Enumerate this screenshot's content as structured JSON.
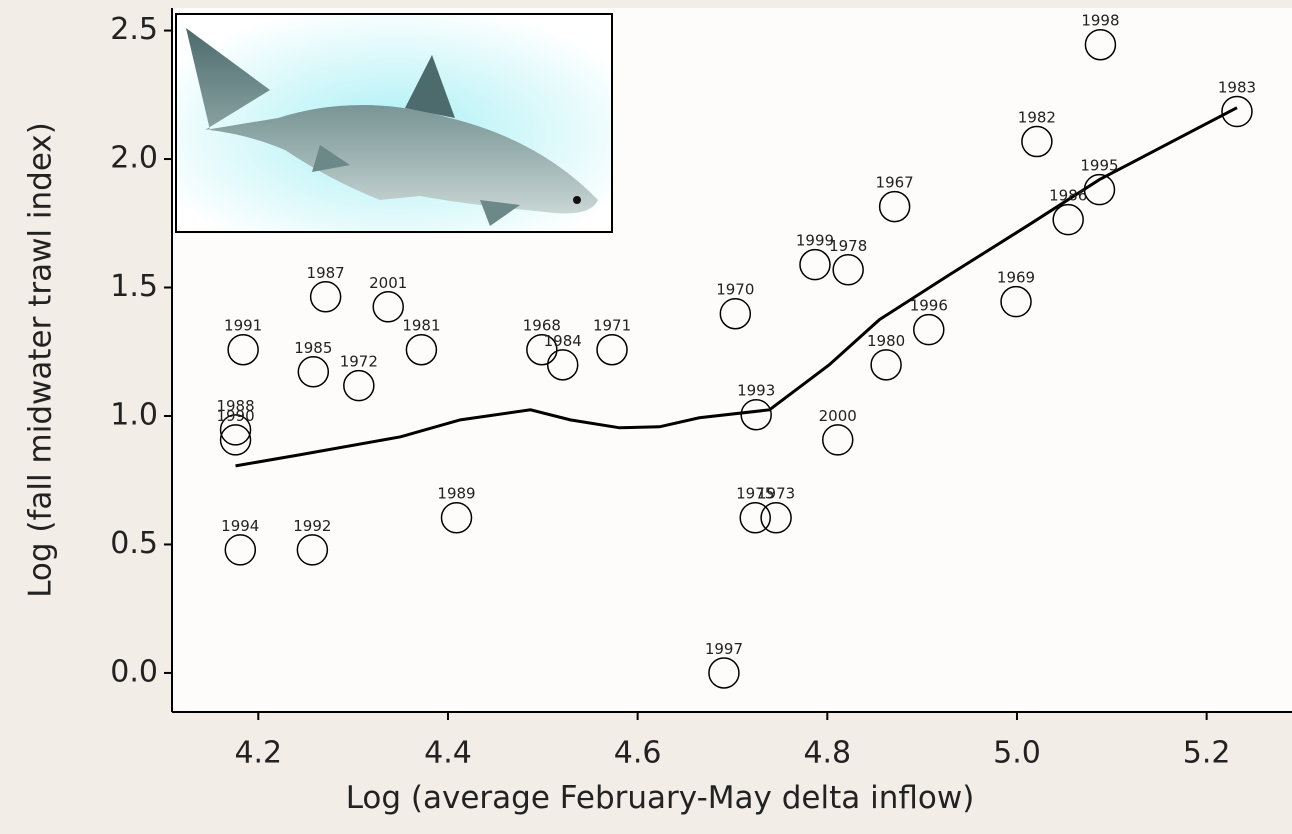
{
  "chart_data": {
    "type": "scatter",
    "x_label": "Log (average February-May delta inflow)",
    "y_label": "Log (fall midwater trawl index)",
    "xlim": [
      4.109,
      5.29
    ],
    "ylim": [
      -0.152,
      2.58
    ],
    "xticks": [
      4.2,
      4.4,
      4.6,
      4.8,
      {
        "value": 5,
        "label": "5.0"
      },
      5.2
    ],
    "yticks": [
      {
        "value": 0,
        "label": "0.0"
      },
      0.5,
      {
        "value": 1,
        "label": "1.0"
      },
      1.5,
      {
        "value": 2,
        "label": "2.0"
      },
      2.5
    ],
    "color": "#000000",
    "point_labels": [
      "1998",
      "1983",
      "1982",
      "1995",
      "1967",
      "1986",
      "1999",
      "1978",
      "1969",
      "1996",
      "1980",
      "1970",
      "1993",
      "2000",
      "1975",
      "1973",
      "1997",
      "1968",
      "1984",
      "1971",
      "1981",
      "2001",
      "1987",
      "1985",
      "1972",
      "1991",
      "1988",
      "1990",
      "1989",
      "1994",
      "1992"
    ],
    "x": [
      5.088,
      5.232,
      5.021,
      5.087,
      4.871,
      5.054,
      4.787,
      4.822,
      4.999,
      4.907,
      4.862,
      4.703,
      4.725,
      4.811,
      4.724,
      4.746,
      4.691,
      4.499,
      4.521,
      4.573,
      4.372,
      4.337,
      4.271,
      4.258,
      4.306,
      4.184,
      4.176,
      4.176,
      4.409,
      4.181,
      4.257
    ],
    "y": [
      2.445,
      2.185,
      2.068,
      1.881,
      1.815,
      1.764,
      1.589,
      1.569,
      1.445,
      1.336,
      1.199,
      1.398,
      1.005,
      0.907,
      0.604,
      0.604,
      0,
      1.258,
      1.199,
      1.258,
      1.258,
      1.425,
      1.464,
      1.172,
      1.118,
      1.258,
      0.946,
      0.907,
      0.604,
      0.479,
      0.479
    ],
    "fit_line": {
      "x": [
        4.176,
        4.244,
        4.35,
        4.413,
        4.487,
        4.529,
        4.581,
        4.623,
        4.665,
        4.739,
        4.802,
        4.855,
        4.929,
        5.013,
        5.087,
        5.232
      ],
      "y": [
        0.806,
        0.849,
        0.919,
        0.985,
        1.024,
        0.985,
        0.954,
        0.958,
        0.993,
        1.024,
        1.199,
        1.375,
        1.55,
        1.745,
        1.92,
        2.2
      ]
    }
  }
}
